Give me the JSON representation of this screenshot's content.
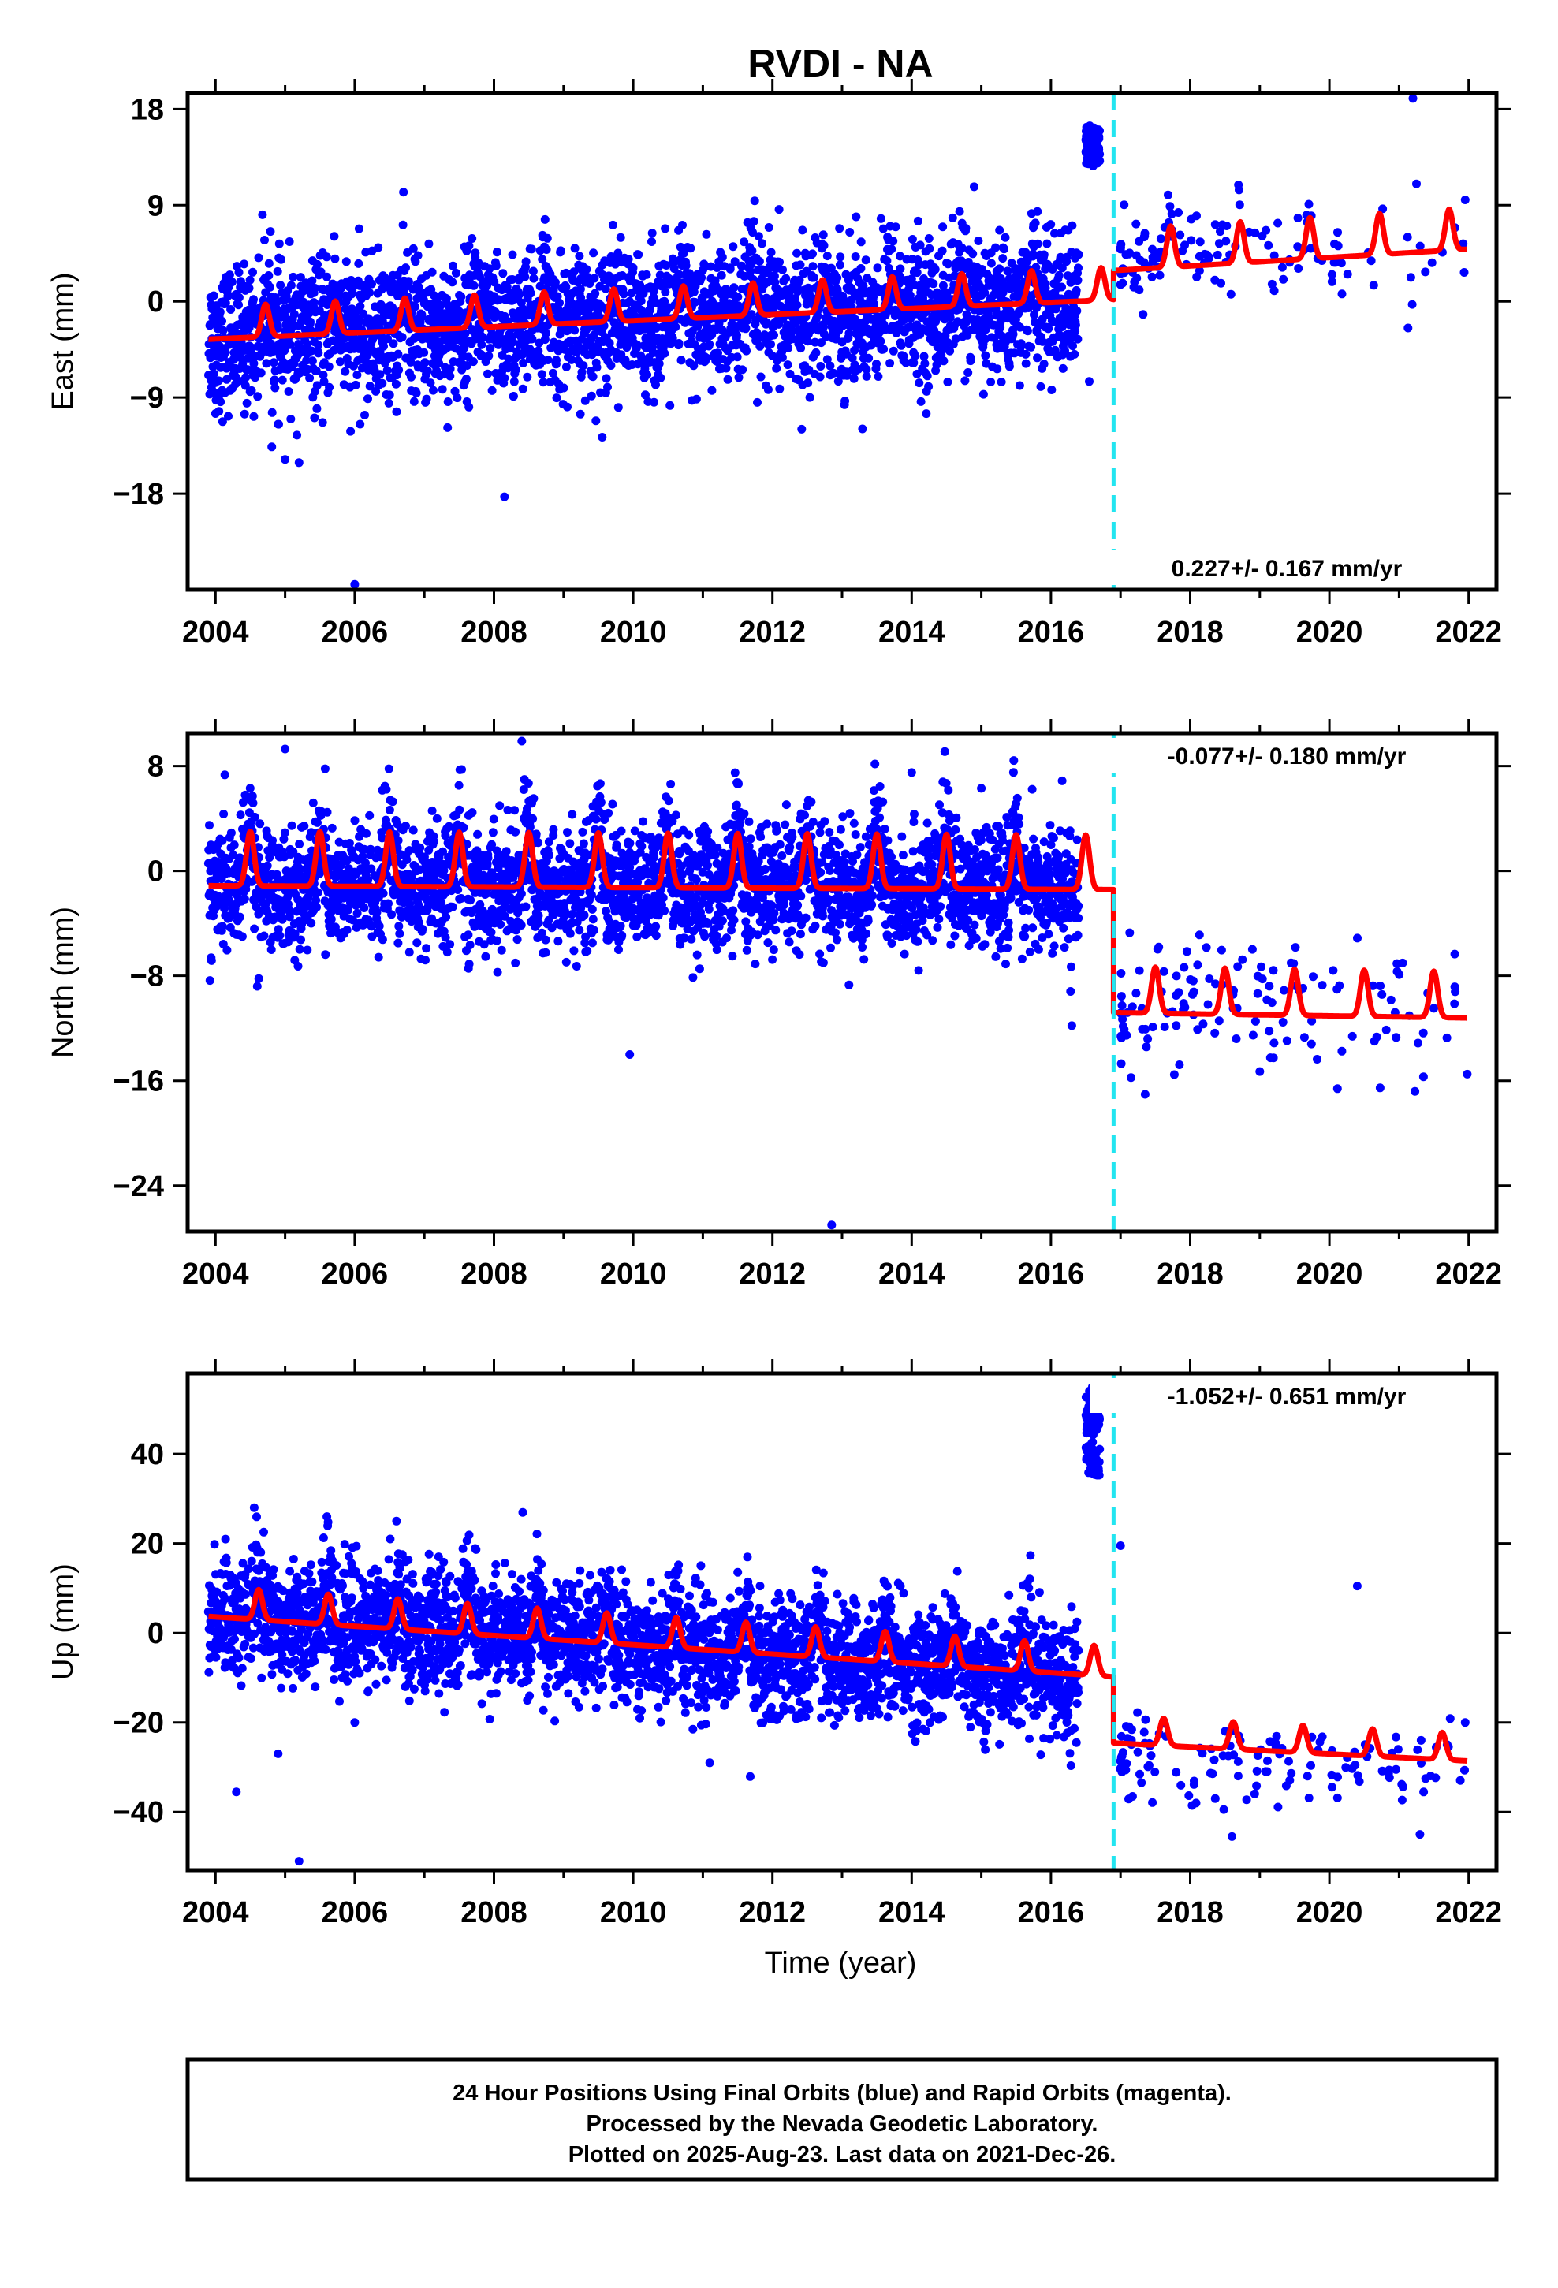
{
  "colors": {
    "final_points": "#0000ff",
    "model_line": "#ff0000",
    "offset_line": "#22e5f0",
    "axes": "#000000"
  },
  "chart_data": {
    "type": "scatter",
    "title": "RVDI - NA",
    "xlabel": "Time (year)",
    "xlim": [
      2003.6,
      2022.4
    ],
    "x_ticks": [
      "2004",
      "2006",
      "2008",
      "2010",
      "2012",
      "2014",
      "2016",
      "2018",
      "2020",
      "2022"
    ],
    "offset_year": 2016.9,
    "data_end_year": 2021.98,
    "panels": [
      {
        "name": "east",
        "ylabel": "East (mm)",
        "ylim": [
          -27,
          19.5
        ],
        "y_ticks": [
          "18",
          "9",
          "0",
          "-9",
          "-18"
        ],
        "velocity_label": "0.227+/- 0.167 mm/yr",
        "velocity_label_position": "bottom-right",
        "scatter_summary": [
          {
            "segment": "2003.9-2016.4",
            "center_start_mm": -2.5,
            "center_end_mm": 0.8,
            "spread_mm": 3.2,
            "seasonal_amp_mm": 2.0
          },
          {
            "segment": "2016.5-2016.7",
            "cluster_mm": [
              12.5,
              16.5
            ],
            "note": "outlier cluster"
          },
          {
            "segment": "2017.0-2021.98",
            "center_mm": 5.5,
            "sparse": true
          }
        ],
        "outliers": [
          {
            "x": 2004.0,
            "y": -10.5
          },
          {
            "x": 2004.05,
            "y": -10.3
          },
          {
            "x": 2004.9,
            "y": -11.5
          },
          {
            "x": 2005.0,
            "y": -14.8
          },
          {
            "x": 2005.2,
            "y": -15.1
          },
          {
            "x": 2006.0,
            "y": -26.5
          },
          {
            "x": 2008.15,
            "y": -18.3
          },
          {
            "x": 2021.2,
            "y": 19.0
          },
          {
            "x": 2021.25,
            "y": 11.0
          },
          {
            "x": 2016.55,
            "y": -7.5
          },
          {
            "x": 2020.6,
            "y": 3.8
          },
          {
            "x": 2021.95,
            "y": 9.5
          }
        ],
        "model": {
          "segments": [
            {
              "x_start": 2003.9,
              "x_end": 2016.9,
              "y_start": -2.5,
              "y_end": 1.2,
              "seasonal_amp": 1.9,
              "peak_phase": 0.72
            },
            {
              "x_start": 2016.9,
              "x_end": 2021.98,
              "y_start": 4.2,
              "y_end": 6.2,
              "seasonal_amp": 2.4,
              "peak_phase": 0.72
            }
          ]
        }
      },
      {
        "name": "north",
        "ylabel": "North (mm)",
        "ylim": [
          -27.5,
          10.5
        ],
        "y_ticks": [
          "8",
          "0",
          "-8",
          "-16",
          "-24"
        ],
        "velocity_label": "-0.077+/- 0.180 mm/yr",
        "velocity_label_position": "top-right",
        "scatter_summary": [
          {
            "segment": "2003.9-2016.4",
            "center_mm": 0.0,
            "spread_mm": 2.3,
            "seasonal_amp_mm": 2.5
          },
          {
            "segment": "2017.0-2021.98",
            "center_mm": -10.0,
            "sparse": true
          }
        ],
        "outliers": [
          {
            "x": 2005.0,
            "y": 9.3
          },
          {
            "x": 2008.4,
            "y": 9.9
          },
          {
            "x": 2004.6,
            "y": -8.8
          },
          {
            "x": 2009.95,
            "y": -14.0
          },
          {
            "x": 2012.85,
            "y": -27.0
          },
          {
            "x": 2013.1,
            "y": -8.7
          },
          {
            "x": 2016.3,
            "y": -11.8
          },
          {
            "x": 2021.98,
            "y": -15.5
          },
          {
            "x": 2019.0,
            "y": -15.3
          },
          {
            "x": 2014.0,
            "y": 7.5
          },
          {
            "x": 2015.0,
            "y": 6.3
          }
        ],
        "model": {
          "segments": [
            {
              "x_start": 2003.9,
              "x_end": 2016.9,
              "y_start": 0.3,
              "y_end": 0.0,
              "seasonal_amp": 2.6,
              "peak_phase": 0.5
            },
            {
              "x_start": 2016.9,
              "x_end": 2021.98,
              "y_start": -9.6,
              "y_end": -10.0,
              "seasonal_amp": 2.2,
              "peak_phase": 0.5
            }
          ]
        }
      },
      {
        "name": "up",
        "ylabel": "Up (mm)",
        "ylim": [
          -53,
          58
        ],
        "y_ticks": [
          "40",
          "20",
          "0",
          "-20",
          "-40"
        ],
        "velocity_label": "-1.052+/- 0.651 mm/yr",
        "velocity_label_position": "top-right",
        "scatter_summary": [
          {
            "segment": "2003.9-2016.4",
            "center_start_mm": 7.0,
            "center_end_mm": -8.0,
            "spread_mm": 6.5,
            "seasonal_amp_mm": 4.5
          },
          {
            "segment": "2016.5-2016.7",
            "cluster_mm": [
              35.0,
              55.0
            ],
            "note": "outlier cluster"
          },
          {
            "segment": "2017.0-2021.98",
            "center_mm": -27.0,
            "sparse": true
          }
        ],
        "outliers": [
          {
            "x": 2004.3,
            "y": -35.5
          },
          {
            "x": 2005.2,
            "y": -51.0
          },
          {
            "x": 2004.9,
            "y": -27.0
          },
          {
            "x": 2006.0,
            "y": -20.0
          },
          {
            "x": 2011.1,
            "y": -29.0
          },
          {
            "x": 2020.4,
            "y": 10.5
          },
          {
            "x": 2017.0,
            "y": 19.5
          },
          {
            "x": 2021.3,
            "y": -45.0
          },
          {
            "x": 2018.6,
            "y": -45.5
          },
          {
            "x": 2021.95,
            "y": -20.0
          },
          {
            "x": 2005.6,
            "y": 26.0
          },
          {
            "x": 2006.6,
            "y": 25.0
          }
        ],
        "model": {
          "segments": [
            {
              "x_start": 2003.9,
              "x_end": 2016.9,
              "y_start": 6.0,
              "y_end": -7.5,
              "seasonal_amp": 4.2,
              "peak_phase": 0.62
            },
            {
              "x_start": 2016.9,
              "x_end": 2021.98,
              "y_start": -22.5,
              "y_end": -26.5,
              "seasonal_amp": 3.8,
              "peak_phase": 0.62
            }
          ]
        }
      }
    ],
    "annotation_lines": [
      "24 Hour Positions Using Final Orbits (blue) and Rapid Orbits (magenta).",
      "Processed by the Nevada Geodetic Laboratory.",
      "Plotted on 2025-Aug-23. Last data on 2021-Dec-26."
    ]
  }
}
